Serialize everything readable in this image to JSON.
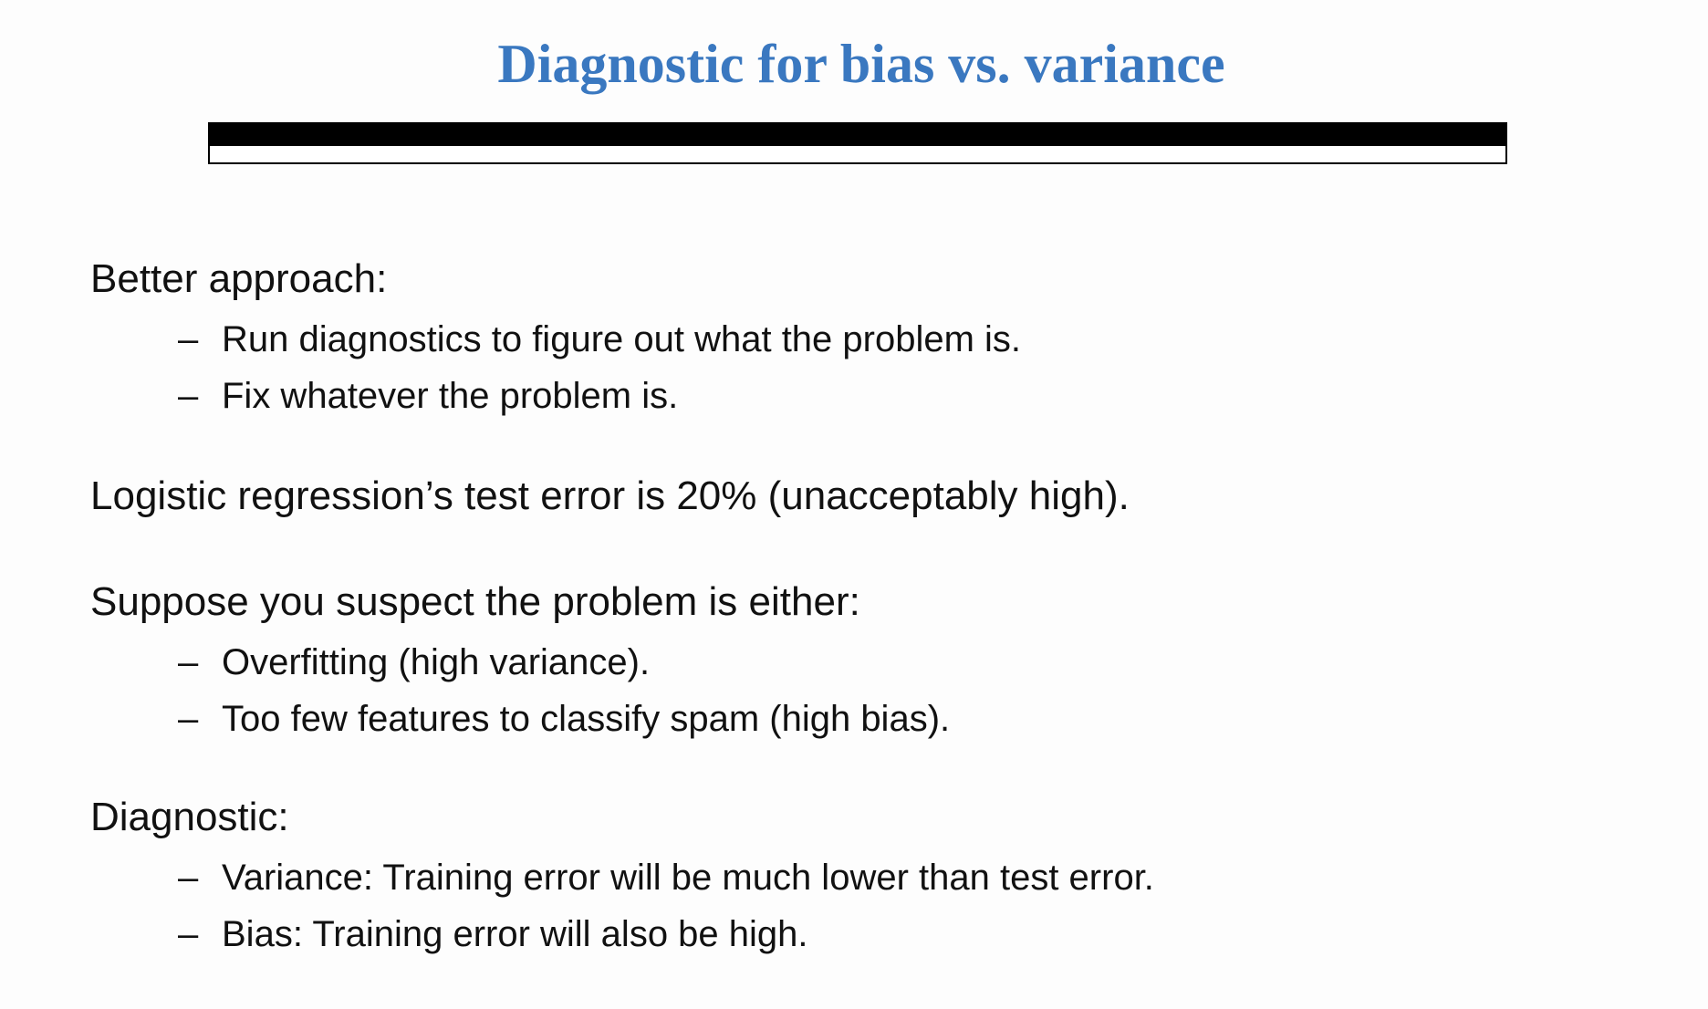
{
  "slide": {
    "title": "Diagnostic for bias vs. variance",
    "title_color": "#3a78c0",
    "bullet_symbol": "–",
    "sections": {
      "better_approach": {
        "heading": "Better approach:",
        "items": [
          "Run diagnostics to figure out what the problem is.",
          "Fix whatever the problem is."
        ]
      },
      "test_error": {
        "heading": "Logistic regression’s test error is 20% (unacceptably high)."
      },
      "suppose": {
        "heading": "Suppose you suspect the problem is either:",
        "items": [
          "Overfitting (high variance).",
          "Too few features to classify spam (high bias)."
        ]
      },
      "diagnostic": {
        "heading": "Diagnostic:",
        "items": [
          "Variance: Training error will be much lower than test error.",
          "Bias: Training error will also be high."
        ]
      }
    }
  }
}
